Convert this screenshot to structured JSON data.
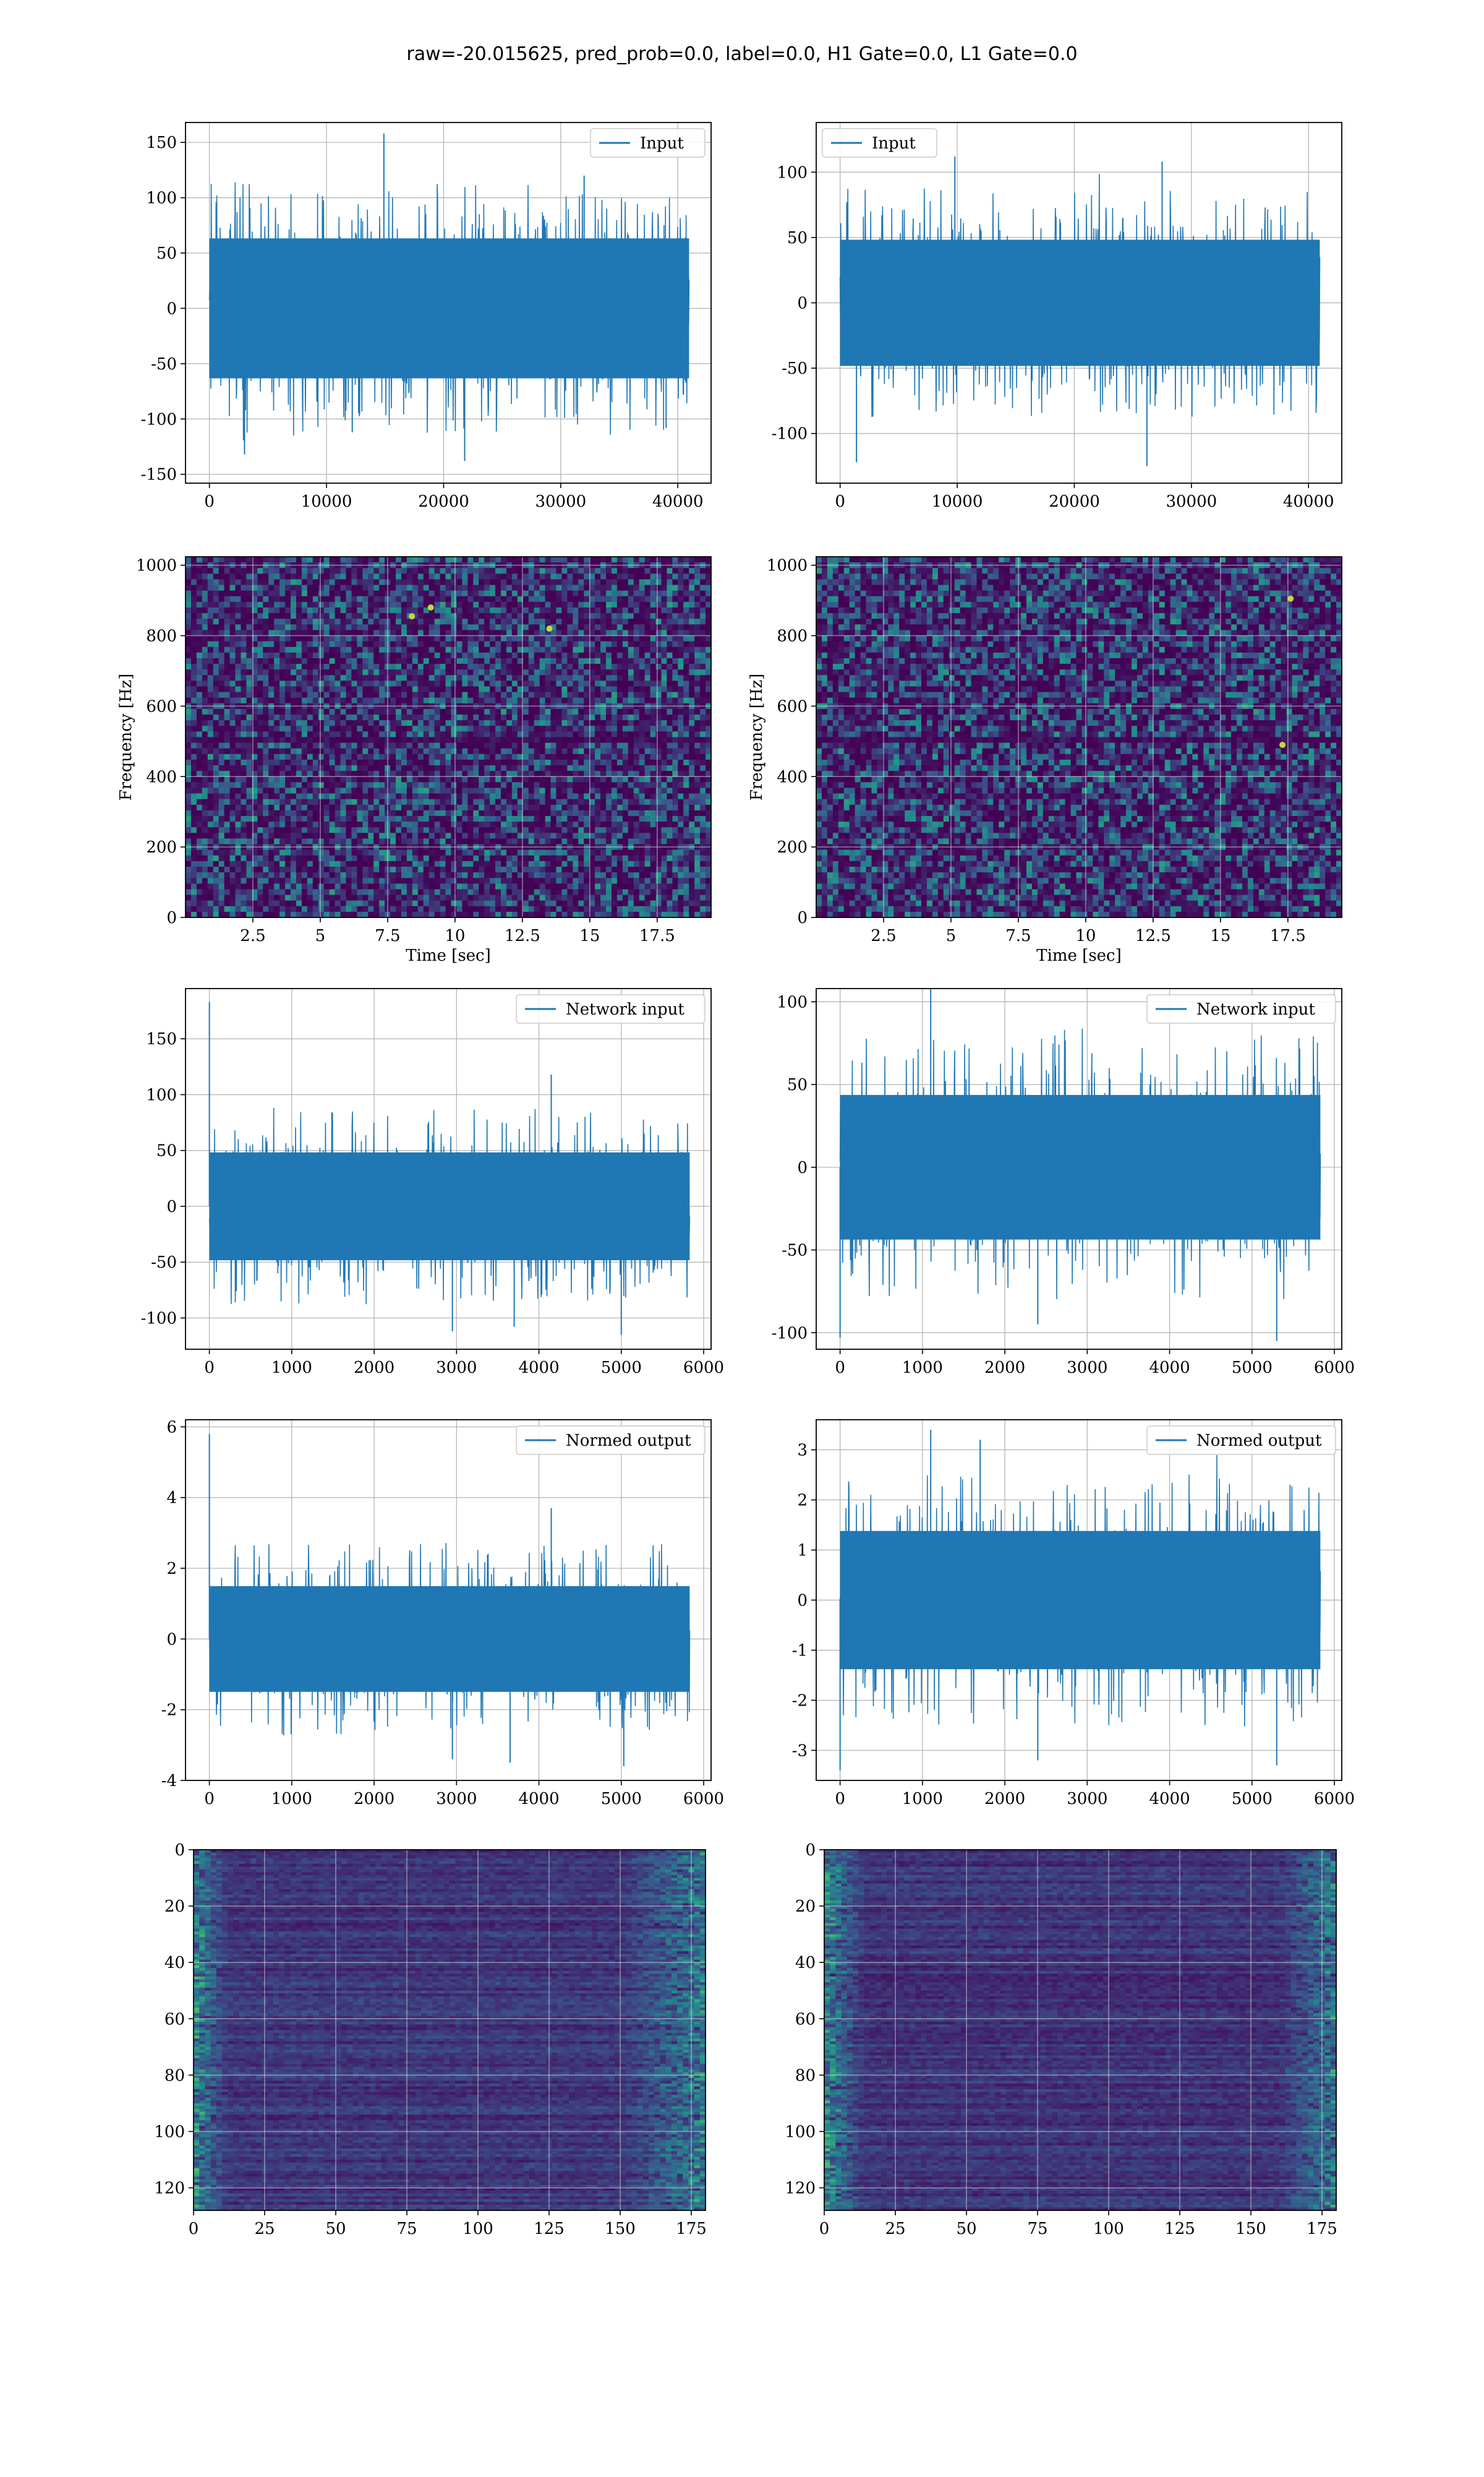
{
  "figure": {
    "suptitle": "raw=-20.015625, pred_prob=0.0, label=0.0, H1 Gate=0.0, L1 Gate=0.0",
    "colors": {
      "line": "#1f77b4",
      "grid": "#b0b0b0",
      "viridis_low": "#440154",
      "viridis_mid": "#21918c",
      "viridis_high": "#fde725"
    }
  },
  "chart_data": [
    {
      "id": "h1_input",
      "type": "line",
      "legend": "Input",
      "legend_loc": "upper right",
      "xlim": [
        -2040,
        42840
      ],
      "ylim": [
        -158,
        168
      ],
      "xticks": [
        0,
        10000,
        20000,
        30000,
        40000
      ],
      "yticks": [
        -150,
        -100,
        -50,
        0,
        50,
        100,
        150
      ],
      "grid": true,
      "series": [
        {
          "name": "Input",
          "n": 40960,
          "x_range": [
            0,
            40960
          ],
          "noise_amplitude": 55,
          "y_min": -138,
          "y_max": 158,
          "spikes": [
            [
              14900,
              158
            ],
            [
              3000,
              -132
            ],
            [
              21800,
              -138
            ],
            [
              39000,
              -108
            ],
            [
              12200,
              -112
            ],
            [
              32000,
              120
            ]
          ]
        }
      ]
    },
    {
      "id": "l1_input",
      "type": "line",
      "legend": "Input",
      "legend_loc": "upper left",
      "xlim": [
        -2040,
        42840
      ],
      "ylim": [
        -138,
        138
      ],
      "xticks": [
        0,
        10000,
        20000,
        30000,
        40000
      ],
      "yticks": [
        -100,
        -50,
        0,
        50,
        100
      ],
      "grid": true,
      "series": [
        {
          "name": "Input",
          "n": 40960,
          "x_range": [
            0,
            40960
          ],
          "noise_amplitude": 42,
          "y_min": -122,
          "y_max": 118,
          "spikes": [
            [
              1400,
              -122
            ],
            [
              26200,
              -125
            ],
            [
              27500,
              108
            ],
            [
              9800,
              112
            ]
          ]
        }
      ]
    },
    {
      "id": "h1_spec",
      "type": "heatmap",
      "xlabel": "Time [sec]",
      "ylabel": "Frequency [Hz]",
      "xlim": [
        0,
        19.5
      ],
      "ylim": [
        0,
        1024
      ],
      "xticks": [
        2.5,
        5.0,
        7.5,
        10.0,
        12.5,
        15.0,
        17.5
      ],
      "yticks": [
        0,
        200,
        400,
        600,
        800,
        1000
      ],
      "grid": true,
      "colormap": "viridis",
      "dark_band_hz": 500,
      "bright_spots": [
        [
          8.4,
          855
        ],
        [
          9.1,
          880
        ],
        [
          13.5,
          820
        ]
      ]
    },
    {
      "id": "l1_spec",
      "type": "heatmap",
      "xlabel": "Time [sec]",
      "ylabel": "Frequency [Hz]",
      "xlim": [
        0,
        19.5
      ],
      "ylim": [
        0,
        1024
      ],
      "xticks": [
        2.5,
        5.0,
        7.5,
        10.0,
        12.5,
        15.0,
        17.5
      ],
      "yticks": [
        0,
        200,
        400,
        600,
        800,
        1000
      ],
      "grid": true,
      "colormap": "viridis",
      "dark_band_hz": 500,
      "bright_spots": [
        [
          17.3,
          490
        ],
        [
          17.6,
          905
        ]
      ]
    },
    {
      "id": "h1_network",
      "type": "line",
      "legend": "Network input",
      "legend_loc": "upper right",
      "xlim": [
        -290,
        6090
      ],
      "ylim": [
        -128,
        195
      ],
      "xticks": [
        0,
        1000,
        2000,
        3000,
        4000,
        5000,
        6000
      ],
      "yticks": [
        -100,
        -50,
        0,
        50,
        100,
        150
      ],
      "grid": true,
      "series": [
        {
          "name": "Network input",
          "n": 5830,
          "x_range": [
            0,
            5830
          ],
          "noise_amplitude": 42,
          "y_min": -115,
          "y_max": 183,
          "spikes": [
            [
              0,
              183
            ],
            [
              4150,
              118
            ],
            [
              2950,
              -112
            ],
            [
              5000,
              -115
            ],
            [
              3700,
              -108
            ]
          ]
        }
      ]
    },
    {
      "id": "l1_network",
      "type": "line",
      "legend": "Network input",
      "legend_loc": "upper right",
      "xlim": [
        -290,
        6090
      ],
      "ylim": [
        -110,
        108
      ],
      "xticks": [
        0,
        1000,
        2000,
        3000,
        4000,
        5000,
        6000
      ],
      "yticks": [
        -100,
        -50,
        0,
        50,
        100
      ],
      "grid": true,
      "series": [
        {
          "name": "Network input",
          "n": 5830,
          "x_range": [
            0,
            5830
          ],
          "noise_amplitude": 38,
          "y_min": -105,
          "y_max": 108,
          "spikes": [
            [
              1100,
              108
            ],
            [
              0,
              -103
            ],
            [
              5300,
              -105
            ],
            [
              2400,
              -95
            ]
          ]
        }
      ]
    },
    {
      "id": "h1_normed",
      "type": "line",
      "legend": "Normed output",
      "legend_loc": "upper right",
      "xlim": [
        -290,
        6090
      ],
      "ylim": [
        -4.0,
        6.2
      ],
      "xticks": [
        0,
        1000,
        2000,
        3000,
        4000,
        5000,
        6000
      ],
      "yticks": [
        -4,
        -2,
        0,
        2,
        4,
        6
      ],
      "grid": true,
      "series": [
        {
          "name": "Normed output",
          "n": 5830,
          "x_range": [
            0,
            5830
          ],
          "noise_amplitude": 1.3,
          "y_min": -3.6,
          "y_max": 5.8,
          "spikes": [
            [
              0,
              5.8
            ],
            [
              4150,
              3.7
            ],
            [
              3650,
              -3.5
            ],
            [
              5030,
              -3.6
            ],
            [
              2950,
              -3.4
            ]
          ]
        }
      ]
    },
    {
      "id": "l1_normed",
      "type": "line",
      "legend": "Normed output",
      "legend_loc": "upper right",
      "xlim": [
        -290,
        6090
      ],
      "ylim": [
        -3.6,
        3.6
      ],
      "xticks": [
        0,
        1000,
        2000,
        3000,
        4000,
        5000,
        6000
      ],
      "yticks": [
        -3,
        -2,
        -1,
        0,
        1,
        2,
        3
      ],
      "grid": true,
      "series": [
        {
          "name": "Normed output",
          "n": 5830,
          "x_range": [
            0,
            5830
          ],
          "noise_amplitude": 1.2,
          "y_min": -3.4,
          "y_max": 3.4,
          "spikes": [
            [
              1100,
              3.4
            ],
            [
              0,
              -3.4
            ],
            [
              5300,
              -3.3
            ],
            [
              1700,
              3.2
            ],
            [
              2400,
              -3.2
            ]
          ]
        }
      ]
    },
    {
      "id": "h1_features",
      "type": "heatmap",
      "colormap": "viridis",
      "xlim": [
        0,
        180
      ],
      "ylim": [
        128,
        0
      ],
      "xticks": [
        0,
        25,
        50,
        75,
        100,
        125,
        150,
        175
      ],
      "yticks": [
        0,
        20,
        40,
        60,
        80,
        100,
        120
      ],
      "grid": true,
      "left_band_cols": 12,
      "right_band_cols": 30
    },
    {
      "id": "l1_features",
      "type": "heatmap",
      "colormap": "viridis",
      "xlim": [
        0,
        180
      ],
      "ylim": [
        128,
        0
      ],
      "xticks": [
        0,
        25,
        50,
        75,
        100,
        125,
        150,
        175
      ],
      "yticks": [
        0,
        20,
        40,
        60,
        80,
        100,
        120
      ],
      "grid": true,
      "left_band_cols": 14,
      "right_band_cols": 20
    }
  ]
}
